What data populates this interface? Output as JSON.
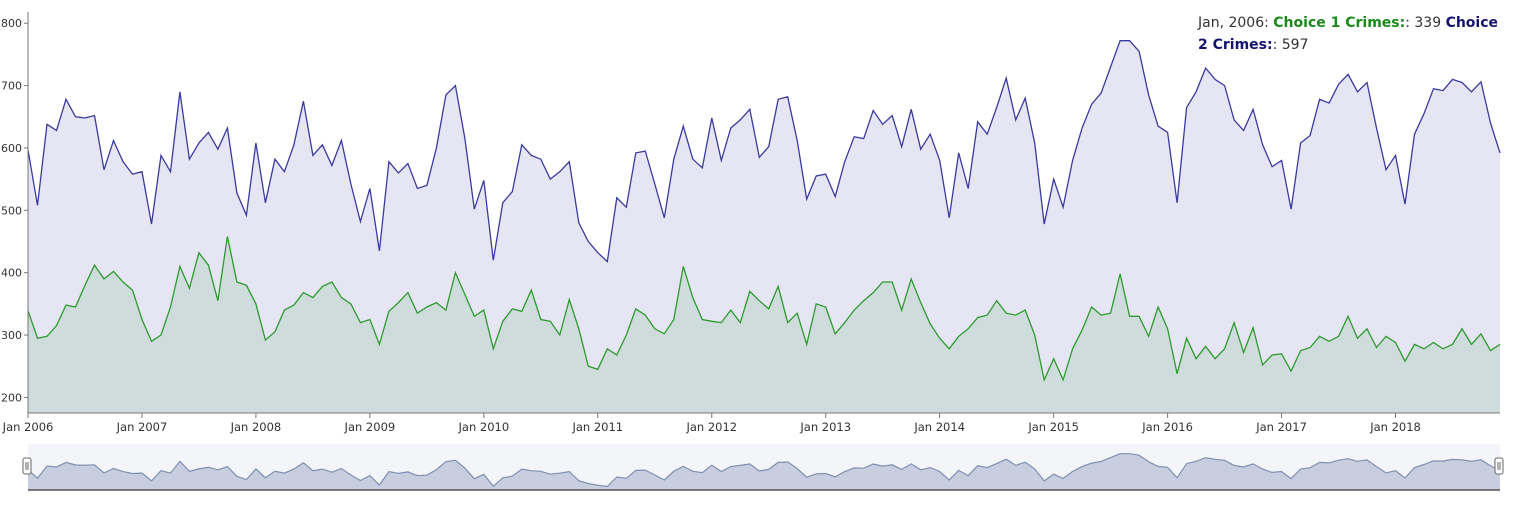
{
  "legend": {
    "date": "Jan, 2006:",
    "series1_label": "Choice 1 Crimes:",
    "series1_value": ": 339",
    "series2_label": "Choice 2 Crimes:",
    "series2_value": ": 597"
  },
  "colors": {
    "series1_line": "#2e9a2e",
    "series1_fill": "#cfdcdc",
    "series2_line": "#3a3aa0",
    "series2_fill": "#e5e5f4",
    "axis": "#777777",
    "navigator_line": "#8090b0",
    "navigator_fill": "#c8cee0"
  },
  "chart_data": {
    "type": "area",
    "x_start": "2006-01",
    "x_end": "2018-12",
    "x_tick_labels": [
      "Jan 2006",
      "Jan 2007",
      "Jan 2008",
      "Jan 2009",
      "Jan 2010",
      "Jan 2011",
      "Jan 2012",
      "Jan 2013",
      "Jan 2014",
      "Jan 2015",
      "Jan 2016",
      "Jan 2017",
      "Jan 2018"
    ],
    "y_ticks": [
      200,
      300,
      400,
      500,
      600,
      700,
      800
    ],
    "ylim": [
      175,
      818
    ],
    "grid": false,
    "legend_position": "top-right",
    "navigator": true,
    "series": [
      {
        "name": "Choice 1 Crimes",
        "values": [
          339,
          295,
          298,
          315,
          348,
          345,
          380,
          412,
          390,
          402,
          385,
          372,
          325,
          290,
          300,
          345,
          410,
          375,
          432,
          412,
          355,
          458,
          385,
          380,
          350,
          292,
          305,
          340,
          348,
          368,
          360,
          378,
          385,
          360,
          350,
          320,
          325,
          285,
          338,
          352,
          368,
          335,
          345,
          352,
          340,
          400,
          365,
          330,
          340,
          278,
          322,
          342,
          338,
          372,
          325,
          322,
          300,
          357,
          310,
          250,
          245,
          278,
          268,
          300,
          342,
          332,
          310,
          302,
          325,
          410,
          360,
          325,
          322,
          320,
          340,
          320,
          370,
          355,
          342,
          378,
          320,
          335,
          285,
          350,
          345,
          302,
          320,
          340,
          355,
          368,
          385,
          385,
          340,
          390,
          352,
          318,
          295,
          278,
          298,
          310,
          328,
          332,
          355,
          335,
          332,
          340,
          300,
          228,
          262,
          228,
          278,
          308,
          345,
          332,
          335,
          398,
          330,
          330,
          298,
          345,
          310,
          238,
          295,
          262,
          282,
          262,
          278,
          320,
          272,
          312,
          252,
          268,
          270,
          242,
          275,
          280,
          298,
          290,
          298,
          330,
          295,
          310,
          280,
          298,
          288,
          258,
          285,
          278,
          288,
          278,
          285,
          310,
          285,
          302,
          275,
          285
        ]
      },
      {
        "name": "Choice 2 Crimes",
        "values": [
          597,
          508,
          638,
          628,
          678,
          650,
          648,
          652,
          565,
          612,
          578,
          558,
          562,
          478,
          588,
          562,
          690,
          582,
          608,
          625,
          598,
          632,
          528,
          492,
          608,
          512,
          582,
          562,
          605,
          675,
          588,
          605,
          572,
          612,
          542,
          482,
          535,
          435,
          578,
          560,
          575,
          535,
          540,
          600,
          685,
          700,
          615,
          502,
          548,
          420,
          512,
          530,
          605,
          588,
          582,
          550,
          562,
          578,
          480,
          450,
          432,
          418,
          520,
          505,
          592,
          595,
          542,
          488,
          582,
          635,
          582,
          568,
          648,
          580,
          632,
          645,
          662,
          585,
          602,
          678,
          682,
          612,
          518,
          555,
          558,
          522,
          578,
          618,
          615,
          660,
          638,
          652,
          602,
          662,
          598,
          622,
          580,
          488,
          592,
          535,
          642,
          622,
          665,
          712,
          645,
          680,
          608,
          478,
          550,
          505,
          580,
          632,
          670,
          688,
          730,
          772,
          772,
          755,
          685,
          635,
          625,
          512,
          665,
          690,
          728,
          710,
          700,
          645,
          628,
          662,
          605,
          570,
          580,
          502,
          608,
          620,
          678,
          672,
          702,
          718,
          690,
          705,
          632,
          565,
          588,
          510,
          622,
          655,
          695,
          692,
          710,
          705,
          690,
          706,
          640,
          592
        ]
      }
    ]
  }
}
